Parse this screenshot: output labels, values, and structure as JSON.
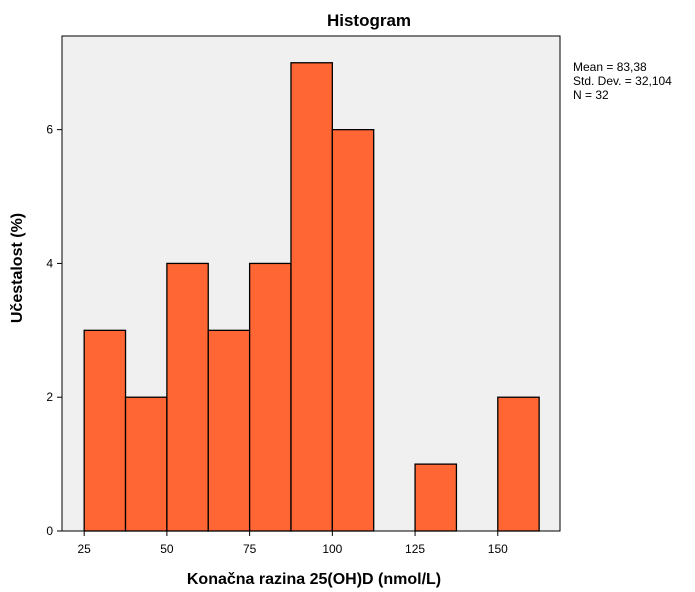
{
  "chart_data": {
    "type": "bar",
    "title": "Histogram",
    "xlabel": "Konačna razina 25(OH)D (nmol/L)",
    "ylabel": "Učestalost (%)",
    "bins": [
      {
        "start": 25,
        "end": 37.5,
        "value": 3
      },
      {
        "start": 37.5,
        "end": 50,
        "value": 2
      },
      {
        "start": 50,
        "end": 62.5,
        "value": 4
      },
      {
        "start": 62.5,
        "end": 75,
        "value": 3
      },
      {
        "start": 75,
        "end": 87.5,
        "value": 4
      },
      {
        "start": 87.5,
        "end": 100,
        "value": 7
      },
      {
        "start": 100,
        "end": 112.5,
        "value": 6
      },
      {
        "start": 112.5,
        "end": 125,
        "value": 0
      },
      {
        "start": 125,
        "end": 137.5,
        "value": 1
      },
      {
        "start": 137.5,
        "end": 150,
        "value": 0
      },
      {
        "start": 150,
        "end": 162.5,
        "value": 2
      }
    ],
    "xlim": [
      18.3,
      168.8
    ],
    "ylim": [
      0,
      7.4
    ],
    "xticks": [
      25,
      50,
      75,
      100,
      125,
      150
    ],
    "xtick_labels": [
      "25",
      "50",
      "75",
      "100",
      "125",
      "150"
    ],
    "yticks": [
      0,
      2,
      4,
      6
    ],
    "ytick_labels": [
      "0",
      "2",
      "4",
      "6"
    ],
    "stats": [
      "Mean = 83,38",
      "Std. Dev. = 32,104",
      "N = 32"
    ],
    "grid": false,
    "colors": {
      "bar_fill": "#FF6633",
      "bar_stroke": "#000000",
      "plot_background": "#F0F0F0",
      "axis": "#000000"
    }
  }
}
